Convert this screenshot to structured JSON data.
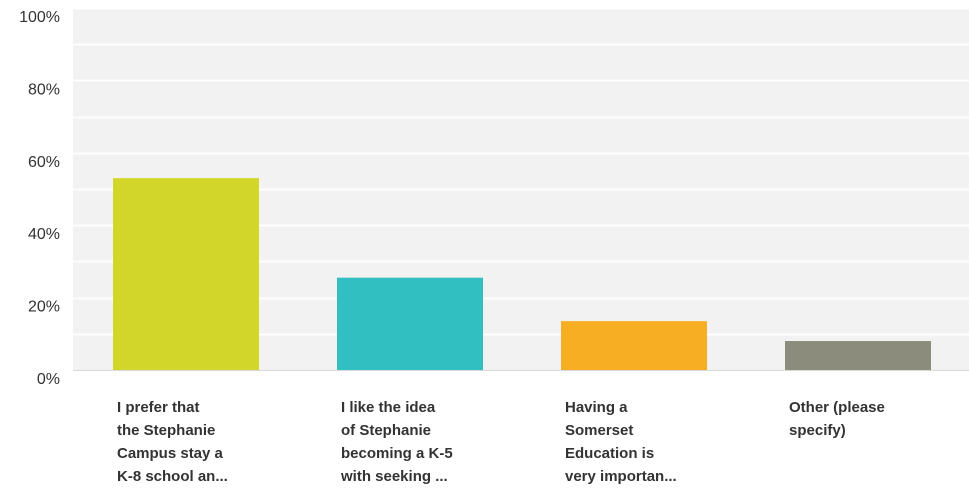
{
  "chart_data": {
    "type": "bar",
    "categories": [
      [
        "I prefer that",
        "the Stephanie",
        "Campus stay a",
        "K-8 school an..."
      ],
      [
        "I like the idea",
        "of Stephanie",
        "becoming a K-5",
        "with seeking ..."
      ],
      [
        "Having a",
        "Somerset",
        "Education is",
        "very importan..."
      ],
      [
        "Other (please",
        "specify)"
      ]
    ],
    "values": [
      53,
      25.5,
      13.5,
      8
    ],
    "y_ticks": [
      "0%",
      "20%",
      "40%",
      "60%",
      "80%",
      "100%"
    ],
    "ylim": [
      0,
      100
    ],
    "grid": true,
    "colors": [
      "#d1d628",
      "#32bfc1",
      "#f7ae22",
      "#8c8c7c"
    ],
    "title": "",
    "xlabel": "",
    "ylabel": ""
  }
}
